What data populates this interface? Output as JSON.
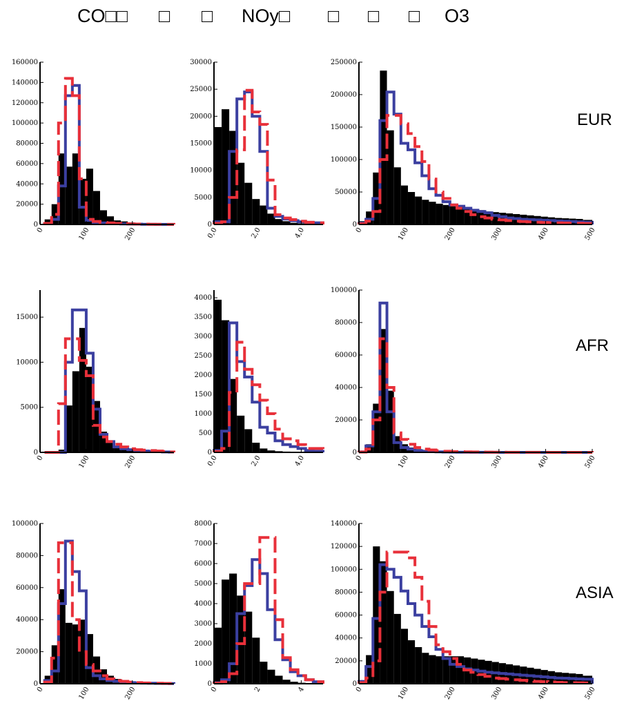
{
  "header": {
    "items": [
      "CO□□",
      "□",
      "□",
      "NOy□",
      "□",
      "□",
      "□",
      "O3"
    ]
  },
  "row_labels": [
    "EUR",
    "AFR",
    "ASIA"
  ],
  "colors": {
    "hist_fill": "#000000",
    "blue": "#3b3fa0",
    "red": "#e8303a"
  },
  "chart_data": [
    {
      "type": "bar",
      "region": "EUR",
      "column": "CO",
      "xlim": [
        0,
        290
      ],
      "ylim": [
        0,
        160000
      ],
      "y_ticks": [
        0,
        20000,
        40000,
        60000,
        80000,
        100000,
        120000,
        140000,
        160000
      ],
      "x_ticks": [
        {
          "v": 0,
          "label": "0"
        },
        {
          "v": 100,
          "label": "100"
        },
        {
          "v": 200,
          "label": "200"
        }
      ],
      "bin_edges": [
        10,
        25,
        40,
        55,
        70,
        85,
        100,
        115,
        130,
        145,
        160,
        175,
        190,
        205,
        220,
        235,
        250,
        265,
        280,
        290
      ],
      "black": [
        5000,
        20000,
        70000,
        57000,
        70000,
        45000,
        55000,
        33000,
        14000,
        8000,
        4000,
        3000,
        2000,
        1500,
        1000,
        800,
        600,
        500,
        300
      ],
      "blue": [
        1000,
        5000,
        38000,
        127000,
        137000,
        17000,
        4000,
        2000,
        1500,
        1000,
        700,
        500,
        400,
        300,
        200,
        150,
        100,
        80,
        50
      ],
      "red": [
        1000,
        10000,
        100000,
        144000,
        127000,
        45000,
        5000,
        3000,
        2000,
        1500,
        1000,
        800,
        500,
        400,
        300,
        200,
        150,
        100,
        80
      ]
    },
    {
      "type": "bar",
      "region": "EUR",
      "column": "NOy",
      "xlim": [
        0,
        5
      ],
      "ylim": [
        0,
        30000
      ],
      "y_ticks": [
        0,
        5000,
        10000,
        15000,
        20000,
        25000,
        30000
      ],
      "x_ticks": [
        {
          "v": 0,
          "label": "0,0"
        },
        {
          "v": 2,
          "label": "2,0"
        },
        {
          "v": 4,
          "label": "4,0"
        }
      ],
      "bin_edges": [
        0,
        0.35,
        0.7,
        1.05,
        1.4,
        1.75,
        2.1,
        2.45,
        2.8,
        3.15,
        3.5,
        3.85,
        4.2,
        4.55,
        5.0
      ],
      "black": [
        18000,
        21300,
        17300,
        11400,
        7700,
        4700,
        3500,
        2000,
        1000,
        600,
        300,
        200,
        100,
        50
      ],
      "blue": [
        500,
        500,
        13500,
        23200,
        24500,
        20000,
        13500,
        3000,
        1500,
        1000,
        700,
        500,
        400,
        300
      ],
      "red": [
        200,
        500,
        5000,
        13800,
        24800,
        20800,
        18500,
        8200,
        1800,
        1200,
        900,
        600,
        400,
        300
      ]
    },
    {
      "type": "bar",
      "region": "EUR",
      "column": "O3",
      "xlim": [
        0,
        500
      ],
      "ylim": [
        0,
        250000
      ],
      "y_ticks": [
        0,
        50000,
        100000,
        150000,
        200000,
        250000
      ],
      "x_ticks": [
        {
          "v": 0,
          "label": "0"
        },
        {
          "v": 100,
          "label": "100"
        },
        {
          "v": 200,
          "label": "200"
        },
        {
          "v": 300,
          "label": "300"
        },
        {
          "v": 400,
          "label": "400"
        },
        {
          "v": 500,
          "label": "500"
        }
      ],
      "bin_edges": [
        0,
        15,
        30,
        45,
        60,
        75,
        90,
        105,
        120,
        135,
        150,
        165,
        180,
        195,
        210,
        225,
        240,
        255,
        270,
        285,
        300,
        315,
        330,
        345,
        360,
        375,
        390,
        405,
        420,
        435,
        450,
        465,
        480,
        500
      ],
      "black": [
        5000,
        20000,
        80000,
        237000,
        145000,
        88000,
        60000,
        50000,
        43000,
        38000,
        35000,
        32000,
        30000,
        28000,
        26000,
        25000,
        23000,
        22000,
        20000,
        19000,
        18000,
        17000,
        16000,
        15000,
        14000,
        13000,
        12000,
        11000,
        10000,
        9500,
        9000,
        8500,
        7000
      ],
      "blue": [
        2000,
        8000,
        40000,
        160000,
        204000,
        170000,
        125000,
        115000,
        95000,
        75000,
        55000,
        45000,
        35000,
        30000,
        28000,
        25000,
        22000,
        20000,
        18000,
        14000,
        12000,
        10000,
        9000,
        8000,
        7500,
        7000,
        6500,
        6000,
        5500,
        5000,
        4500,
        4000,
        3500
      ],
      "red": [
        1000,
        5000,
        20000,
        100000,
        168000,
        168000,
        155000,
        140000,
        120000,
        97000,
        70000,
        50000,
        40000,
        30000,
        25000,
        20000,
        15000,
        12000,
        10000,
        8000,
        7000,
        6000,
        5000,
        4500,
        4000,
        3500,
        3000,
        2800,
        2500,
        2200,
        2000,
        1800,
        1500
      ]
    },
    {
      "type": "bar",
      "region": "AFR",
      "column": "CO",
      "xlim": [
        0,
        290
      ],
      "ylim": [
        0,
        18000
      ],
      "y_ticks": [
        0,
        5000,
        10000,
        15000
      ],
      "x_ticks": [
        {
          "v": 0,
          "label": "0"
        },
        {
          "v": 100,
          "label": "100"
        },
        {
          "v": 200,
          "label": "200"
        }
      ],
      "bin_edges": [
        10,
        25,
        40,
        55,
        70,
        85,
        100,
        115,
        130,
        145,
        160,
        175,
        190,
        205,
        220,
        235,
        250,
        265,
        280,
        290
      ],
      "black": [
        0,
        100,
        300,
        5200,
        9000,
        13800,
        9500,
        5700,
        2300,
        1300,
        600,
        400,
        300,
        200,
        150,
        100,
        80,
        50,
        30
      ],
      "blue": [
        0,
        0,
        0,
        10000,
        15800,
        15800,
        11000,
        4800,
        2000,
        1200,
        600,
        400,
        300,
        200,
        150,
        100,
        80,
        50,
        30
      ],
      "red": [
        0,
        0,
        5400,
        12600,
        12600,
        10200,
        8500,
        3000,
        1700,
        1200,
        900,
        600,
        400,
        300,
        250,
        200,
        150,
        100,
        50
      ]
    },
    {
      "type": "bar",
      "region": "AFR",
      "column": "NOy",
      "xlim": [
        0,
        5
      ],
      "ylim": [
        0,
        4200
      ],
      "y_ticks": [
        0,
        500,
        1000,
        1500,
        2000,
        2500,
        3000,
        3500,
        4000
      ],
      "x_ticks": [
        {
          "v": 0,
          "label": "0,0"
        },
        {
          "v": 2,
          "label": "2,0"
        },
        {
          "v": 4,
          "label": "4,0"
        }
      ],
      "bin_edges": [
        0,
        0.35,
        0.7,
        1.05,
        1.4,
        1.75,
        2.1,
        2.45,
        2.8,
        3.15,
        3.5,
        3.85,
        4.2,
        4.55,
        5.0
      ],
      "black": [
        3950,
        3420,
        1900,
        950,
        600,
        250,
        100,
        50,
        30,
        20,
        10,
        5,
        5,
        0
      ],
      "blue": [
        50,
        550,
        3350,
        2350,
        1950,
        1300,
        650,
        500,
        300,
        200,
        150,
        100,
        50,
        30
      ],
      "red": [
        20,
        100,
        1550,
        2850,
        2150,
        1750,
        1350,
        1000,
        600,
        350,
        300,
        200,
        100,
        100
      ]
    },
    {
      "type": "bar",
      "region": "AFR",
      "column": "O3",
      "xlim": [
        0,
        500
      ],
      "ylim": [
        0,
        100000
      ],
      "y_ticks": [
        0,
        20000,
        40000,
        60000,
        80000,
        100000
      ],
      "x_ticks": [
        {
          "v": 0,
          "label": "0"
        },
        {
          "v": 100,
          "label": "100"
        },
        {
          "v": 200,
          "label": "200"
        },
        {
          "v": 300,
          "label": "300"
        },
        {
          "v": 400,
          "label": "400"
        },
        {
          "v": 500,
          "label": "500"
        }
      ],
      "bin_edges": [
        0,
        15,
        30,
        45,
        60,
        75,
        90,
        105,
        120,
        135,
        150,
        165,
        180,
        195,
        210,
        225,
        240,
        255,
        270,
        285,
        300,
        315,
        330,
        345,
        360,
        375,
        390,
        405,
        420,
        435,
        450,
        465,
        480,
        500
      ],
      "black": [
        500,
        5000,
        30000,
        76000,
        38000,
        10000,
        5000,
        3000,
        2000,
        1500,
        1000,
        700,
        500,
        400,
        300,
        250,
        200,
        150,
        100,
        100,
        80,
        70,
        60,
        50,
        40,
        40,
        30,
        30,
        20,
        20,
        20,
        10,
        10
      ],
      "blue": [
        300,
        4000,
        25000,
        92000,
        25000,
        6000,
        3000,
        2000,
        1000,
        700,
        500,
        300,
        200,
        150,
        100,
        80,
        60,
        50,
        40,
        30,
        20,
        20,
        10,
        10,
        10,
        10,
        5,
        5,
        5,
        5,
        5,
        5,
        5
      ],
      "red": [
        200,
        2000,
        20000,
        70000,
        40000,
        12000,
        8000,
        5000,
        3000,
        2000,
        1500,
        1000,
        700,
        500,
        400,
        300,
        250,
        200,
        150,
        100,
        80,
        70,
        60,
        50,
        40,
        30,
        30,
        20,
        20,
        20,
        10,
        10,
        10
      ]
    },
    {
      "type": "bar",
      "region": "ASIA",
      "column": "CO",
      "xlim": [
        0,
        290
      ],
      "ylim": [
        0,
        100000
      ],
      "y_ticks": [
        0,
        20000,
        40000,
        60000,
        80000,
        100000
      ],
      "x_ticks": [
        {
          "v": 0,
          "label": "0"
        },
        {
          "v": 100,
          "label": "100"
        },
        {
          "v": 200,
          "label": "200"
        }
      ],
      "bin_edges": [
        10,
        25,
        40,
        55,
        70,
        85,
        100,
        115,
        130,
        145,
        160,
        175,
        190,
        205,
        220,
        235,
        250,
        265,
        280,
        290
      ],
      "black": [
        5000,
        24000,
        59000,
        38000,
        37000,
        40000,
        31000,
        17000,
        9000,
        5000,
        3000,
        2000,
        1500,
        1000,
        800,
        600,
        400,
        300,
        200
      ],
      "blue": [
        2000,
        8000,
        50000,
        89000,
        70000,
        58000,
        10000,
        5000,
        3000,
        2000,
        1500,
        1000,
        700,
        500,
        400,
        300,
        200,
        150,
        100
      ],
      "red": [
        1000,
        16000,
        88000,
        88000,
        40000,
        20000,
        12000,
        8000,
        5000,
        3000,
        2000,
        1500,
        1000,
        700,
        500,
        400,
        300,
        200,
        150
      ]
    },
    {
      "type": "bar",
      "region": "ASIA",
      "column": "NOy",
      "xlim": [
        0,
        5
      ],
      "ylim": [
        0,
        8000
      ],
      "y_ticks": [
        0,
        1000,
        2000,
        3000,
        4000,
        5000,
        6000,
        7000,
        8000
      ],
      "x_ticks": [
        {
          "v": 0,
          "label": "0"
        },
        {
          "v": 2,
          "label": "2"
        },
        {
          "v": 4,
          "label": "4"
        }
      ],
      "bin_edges": [
        0,
        0.35,
        0.7,
        1.05,
        1.4,
        1.75,
        2.1,
        2.45,
        2.8,
        3.15,
        3.5,
        3.85,
        4.2,
        4.55,
        5.0
      ],
      "black": [
        2800,
        5200,
        5500,
        4400,
        3600,
        2300,
        1100,
        700,
        400,
        200,
        100,
        50,
        20,
        10
      ],
      "blue": [
        50,
        200,
        1000,
        3500,
        4900,
        6200,
        5500,
        3700,
        2200,
        1200,
        600,
        400,
        200,
        100
      ],
      "red": [
        30,
        100,
        500,
        2000,
        5000,
        5000,
        7300,
        7300,
        3200,
        1300,
        700,
        400,
        200,
        100
      ]
    },
    {
      "type": "bar",
      "region": "ASIA",
      "column": "O3",
      "xlim": [
        0,
        500
      ],
      "ylim": [
        0,
        140000
      ],
      "y_ticks": [
        0,
        20000,
        40000,
        60000,
        80000,
        100000,
        120000,
        140000
      ],
      "x_ticks": [
        {
          "v": 0,
          "label": "0"
        },
        {
          "v": 100,
          "label": "100"
        },
        {
          "v": 200,
          "label": "200"
        },
        {
          "v": 300,
          "label": "300"
        },
        {
          "v": 400,
          "label": "400"
        },
        {
          "v": 500,
          "label": "500"
        }
      ],
      "bin_edges": [
        0,
        15,
        30,
        45,
        60,
        75,
        90,
        105,
        120,
        135,
        150,
        165,
        180,
        195,
        210,
        225,
        240,
        255,
        270,
        285,
        300,
        315,
        330,
        345,
        360,
        375,
        390,
        405,
        420,
        435,
        450,
        465,
        480,
        500
      ],
      "black": [
        3000,
        25000,
        120000,
        107000,
        81000,
        61000,
        48000,
        38000,
        32000,
        27000,
        25000,
        24000,
        24000,
        24000,
        24000,
        23000,
        22000,
        21000,
        20000,
        19000,
        18000,
        17000,
        16000,
        15000,
        14000,
        13000,
        12000,
        11000,
        10000,
        9500,
        9000,
        8500,
        7000
      ],
      "blue": [
        2000,
        15000,
        57000,
        104000,
        100000,
        93000,
        81000,
        70000,
        60000,
        50000,
        41000,
        30000,
        22000,
        17000,
        15000,
        13000,
        12000,
        11000,
        10000,
        9500,
        9000,
        8500,
        8000,
        7500,
        7000,
        6500,
        6000,
        5500,
        5000,
        4800,
        4500,
        4200,
        4000
      ],
      "red": [
        1000,
        5000,
        20000,
        80000,
        115000,
        115000,
        115000,
        110000,
        93000,
        72000,
        50000,
        34000,
        28000,
        22000,
        17000,
        12000,
        10000,
        8000,
        6500,
        5000,
        4500,
        4000,
        3500,
        3000,
        2500,
        2000,
        1800,
        1500,
        1200,
        1000,
        900,
        800,
        700
      ]
    }
  ]
}
